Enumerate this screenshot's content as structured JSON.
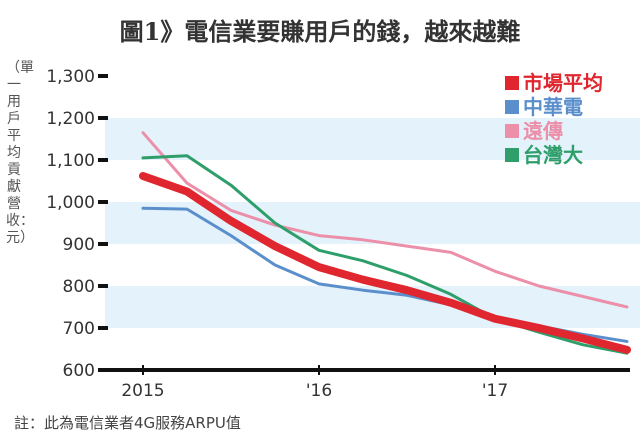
{
  "chart_data": {
    "type": "line",
    "title": "圖1》電信業要賺用戶的錢，越來越難",
    "ylabel": "（單一用戶平均貢獻營收：元）",
    "note": "註：此為電信業者4G服務ARPU值",
    "ylim": [
      600,
      1300
    ],
    "yticks": [
      "1,300",
      "1,200",
      "1,100",
      "1,000",
      "900",
      "800",
      "700",
      "600"
    ],
    "ytick_values": [
      1300,
      1200,
      1100,
      1000,
      900,
      800,
      700,
      600
    ],
    "xtick_labels": [
      "2015",
      "'16",
      "'17"
    ],
    "xtick_index": [
      0,
      4,
      8
    ],
    "legend_position": "top-right",
    "grid": "alternating light-blue bands",
    "band_color": "#e3f2fb",
    "series": [
      {
        "name": "市場平均",
        "color": "#e0262e",
        "values": [
          1062,
          1025,
          955,
          895,
          845,
          815,
          790,
          760,
          722,
          700,
          675,
          648
        ]
      },
      {
        "name": "中華電",
        "color": "#5b8fcc",
        "values": [
          985,
          983,
          920,
          850,
          805,
          790,
          778,
          755,
          722,
          705,
          685,
          668
        ]
      },
      {
        "name": "遠傳",
        "color": "#ec8fa9",
        "values": [
          1165,
          1045,
          980,
          945,
          920,
          910,
          895,
          880,
          835,
          800,
          775,
          750
        ]
      },
      {
        "name": "台灣大",
        "color": "#2e9e6a",
        "values": [
          1105,
          1110,
          1040,
          950,
          885,
          860,
          825,
          780,
          722,
          690,
          660,
          640
        ]
      }
    ]
  }
}
